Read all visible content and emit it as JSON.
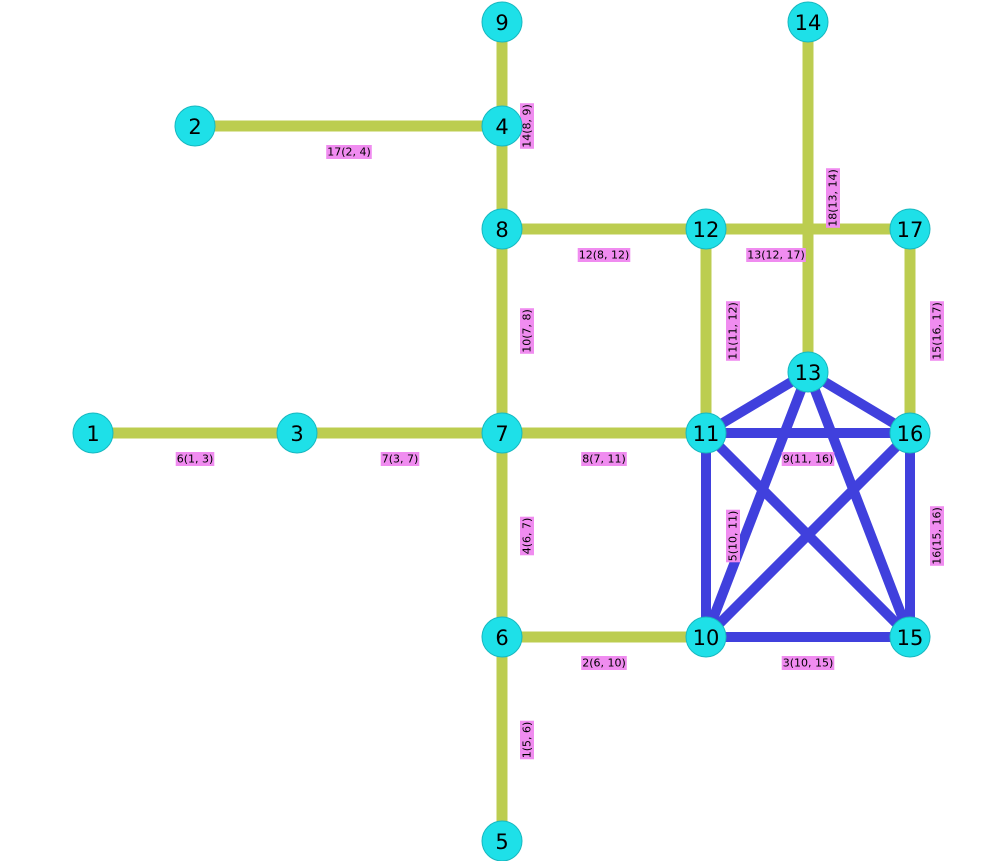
{
  "graph": {
    "colors": {
      "background": "#ffffff",
      "node_fill": "#1ee0e8",
      "node_stroke": "#17b8c0",
      "edge_default": "#bccd50",
      "edge_highlight": "#4040dd",
      "label_bg": "#f08cf0"
    },
    "nodes": [
      {
        "id": "1"
      },
      {
        "id": "2"
      },
      {
        "id": "3"
      },
      {
        "id": "4"
      },
      {
        "id": "5"
      },
      {
        "id": "6"
      },
      {
        "id": "7"
      },
      {
        "id": "8"
      },
      {
        "id": "9"
      },
      {
        "id": "10"
      },
      {
        "id": "11"
      },
      {
        "id": "12"
      },
      {
        "id": "13"
      },
      {
        "id": "14"
      },
      {
        "id": "15"
      },
      {
        "id": "16"
      },
      {
        "id": "17"
      }
    ],
    "edges": [
      {
        "id": "1",
        "source": "5",
        "target": "6",
        "label": "1(5, 6)",
        "highlight": false
      },
      {
        "id": "2",
        "source": "6",
        "target": "10",
        "label": "2(6, 10)",
        "highlight": false
      },
      {
        "id": "3",
        "source": "10",
        "target": "15",
        "label": "3(10, 15)",
        "highlight": true
      },
      {
        "id": "4",
        "source": "6",
        "target": "7",
        "label": "4(6, 7)",
        "highlight": false
      },
      {
        "id": "5",
        "source": "10",
        "target": "11",
        "label": "5(10, 11)",
        "highlight": true
      },
      {
        "id": "6",
        "source": "1",
        "target": "3",
        "label": "6(1, 3)",
        "highlight": false
      },
      {
        "id": "7",
        "source": "3",
        "target": "7",
        "label": "7(3, 7)",
        "highlight": false
      },
      {
        "id": "8",
        "source": "7",
        "target": "11",
        "label": "8(7, 11)",
        "highlight": false
      },
      {
        "id": "9",
        "source": "11",
        "target": "16",
        "label": "9(11, 16)",
        "highlight": true
      },
      {
        "id": "10",
        "source": "7",
        "target": "8",
        "label": "10(7, 8)",
        "highlight": false
      },
      {
        "id": "11",
        "source": "11",
        "target": "12",
        "label": "11(11, 12)",
        "highlight": false
      },
      {
        "id": "12",
        "source": "8",
        "target": "12",
        "label": "12(8, 12)",
        "highlight": false
      },
      {
        "id": "13",
        "source": "12",
        "target": "17",
        "label": "13(12, 17)",
        "highlight": false
      },
      {
        "id": "14",
        "source": "8",
        "target": "9",
        "label": "14(8, 9)",
        "highlight": false
      },
      {
        "id": "15",
        "source": "16",
        "target": "17",
        "label": "15(16, 17)",
        "highlight": false
      },
      {
        "id": "16",
        "source": "15",
        "target": "16",
        "label": "16(15, 16)",
        "highlight": true
      },
      {
        "id": "17",
        "source": "2",
        "target": "4",
        "label": "17(2, 4)",
        "highlight": false
      },
      {
        "id": "18",
        "source": "13",
        "target": "14",
        "label": "18(13, 14)",
        "highlight": false
      },
      {
        "id": "c1",
        "source": "10",
        "target": "13",
        "highlight": true
      },
      {
        "id": "c2",
        "source": "10",
        "target": "16",
        "highlight": true
      },
      {
        "id": "c3",
        "source": "11",
        "target": "13",
        "highlight": true
      },
      {
        "id": "c4",
        "source": "11",
        "target": "15",
        "highlight": true
      },
      {
        "id": "c5",
        "source": "13",
        "target": "15",
        "highlight": true
      },
      {
        "id": "c6",
        "source": "13",
        "target": "16",
        "highlight": true
      }
    ]
  }
}
